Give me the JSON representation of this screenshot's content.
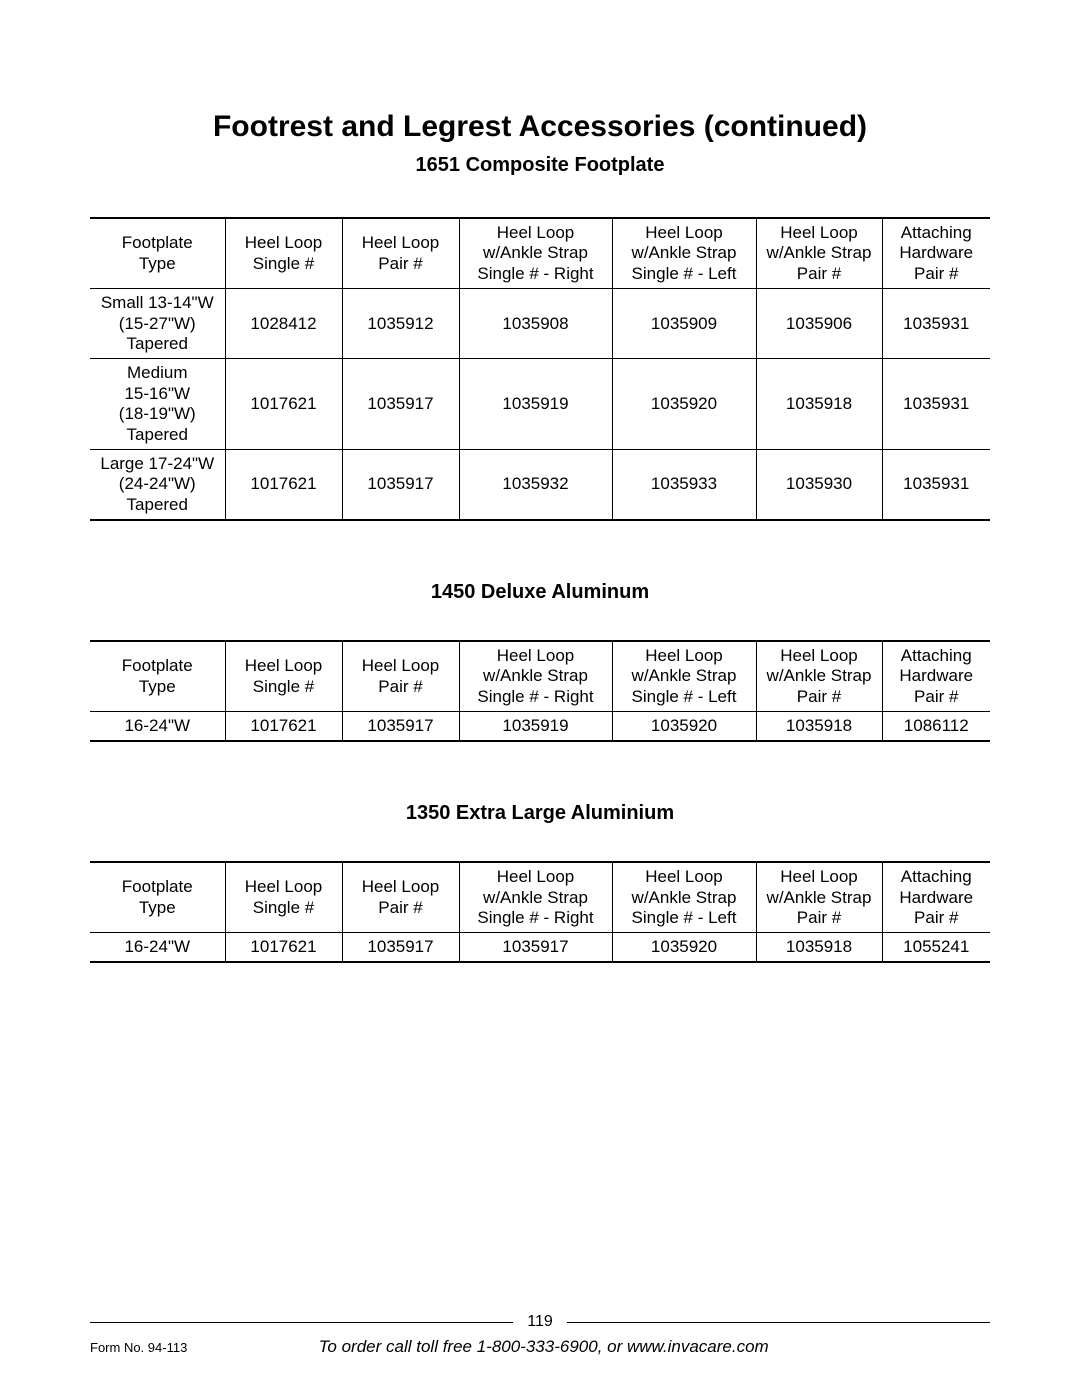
{
  "page": {
    "title": "Footrest and Legrest Accessories (continued)",
    "number": "119",
    "form_no": "Form No. 94-113",
    "order_line": "To order call toll free 1-800-333-6900, or www.invacare.com"
  },
  "headers": {
    "col0": "Footplate\nType",
    "col1": "Heel Loop\nSingle #",
    "col2": "Heel Loop\nPair #",
    "col3": "Heel Loop\nw/Ankle Strap\nSingle # - Right",
    "col4": "Heel Loop\nw/Ankle Strap\nSingle # - Left",
    "col5": "Heel Loop\nw/Ankle Strap\nPair #",
    "col6": "Attaching\nHardware\nPair #"
  },
  "sections": {
    "composite": {
      "title": "1651 Composite Footplate",
      "rows": [
        {
          "type": "Small 13-14\"W\n(15-27\"W)\nTapered",
          "single": "1028412",
          "pair": "1035912",
          "strap_right": "1035908",
          "strap_left": "1035909",
          "strap_pair": "1035906",
          "hardware": "1035931"
        },
        {
          "type": "Medium\n15-16\"W\n(18-19\"W)\nTapered",
          "single": "1017621",
          "pair": "1035917",
          "strap_right": "1035919",
          "strap_left": "1035920",
          "strap_pair": "1035918",
          "hardware": "1035931"
        },
        {
          "type": "Large 17-24\"W\n(24-24\"W)\nTapered",
          "single": "1017621",
          "pair": "1035917",
          "strap_right": "1035932",
          "strap_left": "1035933",
          "strap_pair": "1035930",
          "hardware": "1035931"
        }
      ]
    },
    "deluxe": {
      "title": "1450 Deluxe Aluminum",
      "rows": [
        {
          "type": "16-24\"W",
          "single": "1017621",
          "pair": "1035917",
          "strap_right": "1035919",
          "strap_left": "1035920",
          "strap_pair": "1035918",
          "hardware": "1086112"
        }
      ]
    },
    "extra": {
      "title": "1350 Extra Large Aluminium",
      "rows": [
        {
          "type": "16-24\"W",
          "single": "1017621",
          "pair": "1035917",
          "strap_right": "1035917",
          "strap_left": "1035920",
          "strap_pair": "1035918",
          "hardware": "1055241"
        }
      ]
    }
  }
}
